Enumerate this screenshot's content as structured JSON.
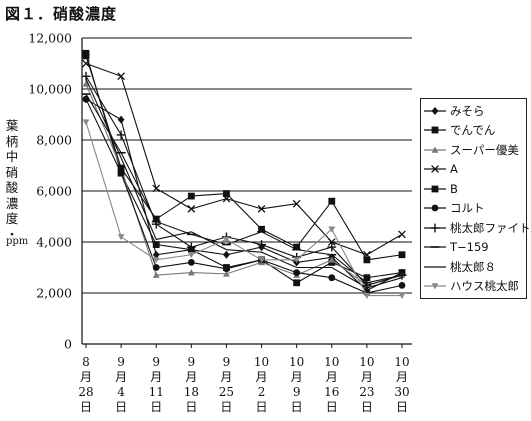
{
  "title": "図１．硝酸濃度",
  "chart_data": {
    "type": "line",
    "ylabel": "葉柄中硝酸濃度・",
    "yunit": "ppm",
    "ylim": [
      0,
      12000
    ],
    "yticks": [
      0,
      2000,
      4000,
      6000,
      8000,
      10000,
      12000
    ],
    "ytick_labels": [
      "0",
      "2,000",
      "4,000",
      "6,000",
      "8,000",
      "10,000",
      "12,000"
    ],
    "grid": "horizontal",
    "legend_position": "right",
    "categories": [
      [
        "8",
        "月",
        "28",
        "日"
      ],
      [
        "9",
        "月",
        "4",
        "日"
      ],
      [
        "9",
        "月",
        "11",
        "日"
      ],
      [
        "9",
        "月",
        "18",
        "日"
      ],
      [
        "9",
        "月",
        "25",
        "日"
      ],
      [
        "10",
        "月",
        "2",
        "日"
      ],
      [
        "10",
        "月",
        "9",
        "日"
      ],
      [
        "10",
        "月",
        "16",
        "日"
      ],
      [
        "10",
        "月",
        "23",
        "日"
      ],
      [
        "10",
        "月",
        "30",
        "日"
      ]
    ],
    "series": [
      {
        "name": "みそら",
        "marker": "diamond",
        "color": "#111111",
        "values": [
          9600,
          8800,
          3500,
          3700,
          3500,
          3800,
          3200,
          3400,
          2100,
          2800
        ]
      },
      {
        "name": "でんでん",
        "marker": "square",
        "color": "#111111",
        "values": [
          11400,
          6700,
          3900,
          3700,
          3000,
          3300,
          2400,
          3200,
          2600,
          2800
        ]
      },
      {
        "name": "スーパー優美",
        "marker": "triangle",
        "color": "#777777",
        "values": [
          10200,
          6900,
          2700,
          2800,
          2750,
          3200,
          2700,
          3300,
          2300,
          2700
        ]
      },
      {
        "name": "A",
        "marker": "x",
        "color": "#111111",
        "values": [
          11000,
          10500,
          6100,
          5300,
          5700,
          5300,
          5500,
          4000,
          3500,
          4300
        ]
      },
      {
        "name": "B",
        "marker": "square-filled",
        "color": "#111111",
        "values": [
          11300,
          6900,
          4900,
          5800,
          5900,
          4500,
          3800,
          5600,
          3300,
          3500
        ]
      },
      {
        "name": "コルト",
        "marker": "circle",
        "color": "#111111",
        "values": [
          9600,
          6700,
          3000,
          3200,
          2950,
          3300,
          2800,
          2600,
          2000,
          2300
        ]
      },
      {
        "name": "桃太郎ファイト",
        "marker": "plus",
        "color": "#111111",
        "values": [
          10500,
          8200,
          4700,
          3800,
          4200,
          3900,
          3400,
          3800,
          2300,
          2700
        ]
      },
      {
        "name": "T−159",
        "marker": "dash",
        "color": "#111111",
        "values": [
          9800,
          7500,
          4800,
          4300,
          3900,
          4400,
          3700,
          3500,
          2400,
          2700
        ]
      },
      {
        "name": "桃太郎８",
        "marker": "none",
        "color": "#111111",
        "values": [
          10400,
          7300,
          4100,
          4400,
          3700,
          3600,
          3000,
          3000,
          2200,
          2600
        ]
      },
      {
        "name": "ハウス桃太郎",
        "marker": "triangle-down",
        "color": "#888888",
        "values": [
          8700,
          4200,
          3300,
          3500,
          4100,
          3300,
          3300,
          4500,
          1900,
          1900
        ]
      }
    ]
  }
}
